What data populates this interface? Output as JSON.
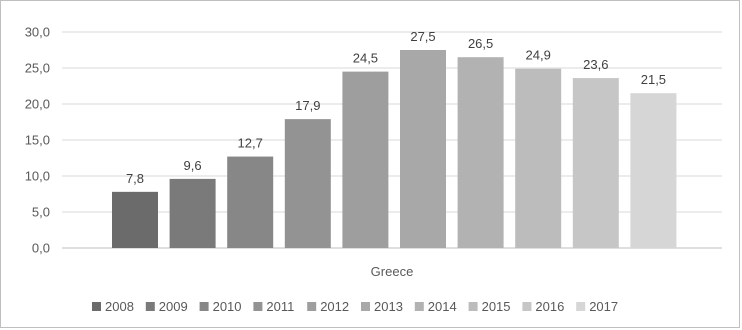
{
  "chart_data": {
    "type": "bar",
    "categories": [
      "Greece"
    ],
    "series": [
      {
        "name": "2008",
        "values": [
          7.8
        ],
        "label": "7,8",
        "color": "#6b6b6b"
      },
      {
        "name": "2009",
        "values": [
          9.6
        ],
        "label": "9,6",
        "color": "#7a7a7a"
      },
      {
        "name": "2010",
        "values": [
          12.7
        ],
        "label": "12,7",
        "color": "#878787"
      },
      {
        "name": "2011",
        "values": [
          17.9
        ],
        "label": "17,9",
        "color": "#939393"
      },
      {
        "name": "2012",
        "values": [
          24.5
        ],
        "label": "24,5",
        "color": "#9e9e9e"
      },
      {
        "name": "2013",
        "values": [
          27.5
        ],
        "label": "27,5",
        "color": "#a8a8a8"
      },
      {
        "name": "2014",
        "values": [
          26.5
        ],
        "label": "26,5",
        "color": "#b2b2b2"
      },
      {
        "name": "2015",
        "values": [
          24.9
        ],
        "label": "24,9",
        "color": "#bcbcbc"
      },
      {
        "name": "2016",
        "values": [
          23.6
        ],
        "label": "23,6",
        "color": "#c6c6c6"
      },
      {
        "name": "2017",
        "values": [
          21.5
        ],
        "label": "21,5",
        "color": "#d6d6d6"
      }
    ],
    "ylim": [
      0,
      30
    ],
    "yticks": [
      "0,0",
      "5,0",
      "10,0",
      "15,0",
      "20,0",
      "25,0",
      "30,0"
    ],
    "title": "",
    "xlabel": "",
    "ylabel": "",
    "grid": true,
    "legend_position": "bottom"
  }
}
